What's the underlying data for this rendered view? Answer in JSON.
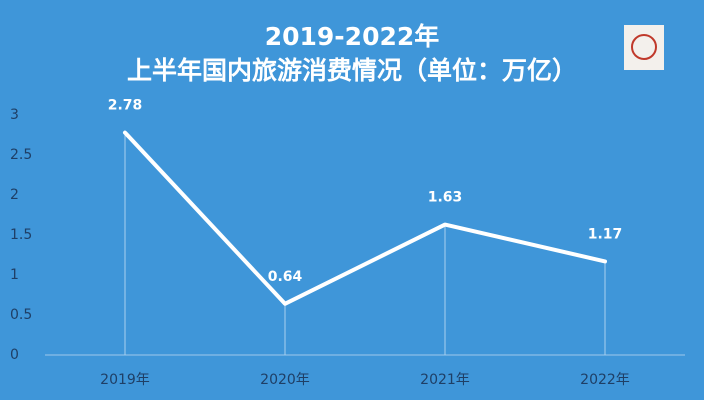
{
  "chart_data": {
    "type": "line",
    "title": "2019-2022年",
    "subtitle": "上半年国内旅游消费情况（单位：万亿）",
    "categories": [
      "2019年",
      "2020年",
      "2021年",
      "2022年"
    ],
    "values": [
      2.78,
      0.64,
      1.63,
      1.17
    ],
    "color": "#ffffff",
    "ylim": [
      0,
      3
    ],
    "yticks": [
      0,
      0.5,
      1,
      1.5,
      2,
      2.5,
      3
    ],
    "grid": false
  }
}
